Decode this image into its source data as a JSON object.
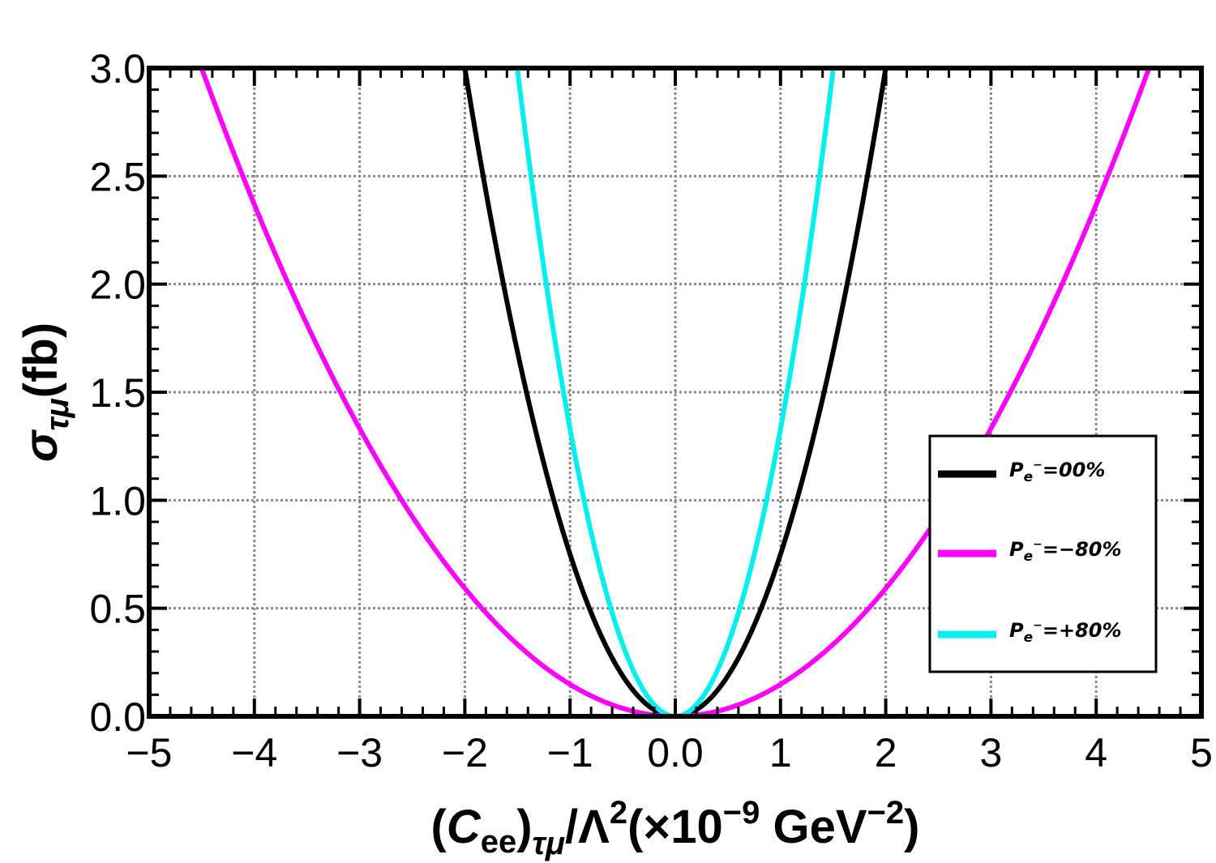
{
  "chart_data": {
    "type": "line",
    "xlabel": {
      "main": "(",
      "c": "C",
      "ee": "ee",
      "close": ")",
      "sub": "τμ",
      "rest": "/Λ",
      "sup2": "2",
      "factor": "(×10",
      "exp": "−9",
      "unit": " GeV",
      "unit_exp": "−2",
      "end": ")"
    },
    "ylabel": {
      "sigma": "σ",
      "sub": "τμ",
      "unit": "(fb)"
    },
    "xlim": [
      -5,
      5
    ],
    "ylim": [
      0,
      3
    ],
    "x_ticks": [
      -5,
      -4,
      -3,
      -2,
      -1,
      0,
      1,
      2,
      3,
      4,
      5
    ],
    "x_tick_labels": [
      "−5",
      "−4",
      "−3",
      "−2",
      "−1",
      "0.0",
      "1",
      "2",
      "3",
      "4",
      "5"
    ],
    "y_ticks": [
      0,
      0.5,
      1,
      1.5,
      2,
      2.5,
      3
    ],
    "y_tick_labels": [
      "0.0",
      "0.5",
      "1.0",
      "1.5",
      "2.0",
      "2.5",
      "3.0"
    ],
    "grid": true,
    "legend_position": "right",
    "series": [
      {
        "name": "P_e-=00%",
        "color": "#000000",
        "coefficient": 0.75,
        "legend": {
          "p": "P",
          "e": "e",
          "minus": "−",
          "value": "=00%"
        }
      },
      {
        "name": "P_e-=-80%",
        "color": "#ff00ff",
        "coefficient": 0.148,
        "legend": {
          "p": "P",
          "e": "e",
          "minus": "−",
          "value": "=−80%"
        }
      },
      {
        "name": "P_e-=+80%",
        "color": "#00f0f0",
        "coefficient": 1.33,
        "legend": {
          "p": "P",
          "e": "e",
          "minus": "−",
          "value": "=+80%"
        }
      }
    ],
    "curve_form": "y = coefficient * x^2"
  }
}
